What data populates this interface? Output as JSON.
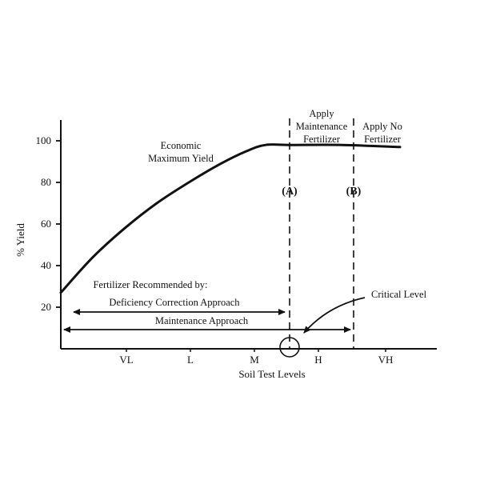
{
  "chart_data": {
    "type": "line",
    "ylabel": "% Yield",
    "xlabel": "Soil Test Levels",
    "yticks": [
      "20",
      "40",
      "60",
      "80",
      "100"
    ],
    "ylim": [
      0,
      110
    ],
    "xcategories": [
      "VL",
      "L",
      "M",
      "H",
      "VH"
    ],
    "series": [
      {
        "x": [
          0,
          0.5,
          1.0,
          1.5,
          2.0,
          2.5,
          2.9,
          3.2,
          3.6,
          4.4,
          5.3
        ],
        "y": [
          27,
          44,
          58,
          70,
          80,
          89,
          95,
          98,
          98,
          98,
          97
        ]
      }
    ],
    "annotations": {
      "curve_label_line1": "Economic",
      "curve_label_line2": "Maximum Yield",
      "marker_a": "(A)",
      "marker_b": "(B)",
      "maintenance_top": "Apply",
      "maintenance_mid": "Maintenance",
      "maintenance_bottom": "Fertilizer",
      "nofert_top": "Apply No",
      "nofert_bottom": "Fertilizer",
      "recommended_by": "Fertilizer Recommended by:",
      "deficiency_approach": "Deficiency Correction Approach",
      "maintenance_approach": "Maintenance Approach",
      "critical_level": "Critical Level"
    }
  }
}
